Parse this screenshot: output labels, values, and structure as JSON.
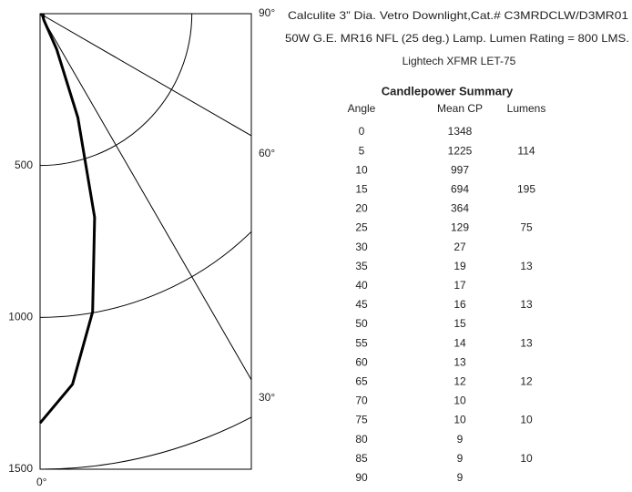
{
  "chart_data": {
    "type": "polar",
    "title_lines": [
      "Calculite 3” Dia. Vetro Downlight,Cat.# C3MRDCLW/D3MR01",
      "50W G.E. MR16 NFL (25 deg.) Lamp. Lumen Rating = 800 LMS.",
      "Lightech XFMR LET-75"
    ],
    "table_title": "Candlepower Summary",
    "columns": [
      "Angle",
      "Mean CP",
      "Lumens"
    ],
    "angles": [
      0,
      5,
      10,
      15,
      20,
      25,
      30,
      35,
      40,
      45,
      50,
      55,
      60,
      65,
      70,
      75,
      80,
      85,
      90
    ],
    "values": [
      1348,
      1225,
      997,
      694,
      364,
      129,
      27,
      19,
      17,
      16,
      15,
      14,
      13,
      12,
      10,
      10,
      9,
      9,
      9
    ],
    "lumens": [
      null,
      114,
      null,
      195,
      null,
      75,
      null,
      13,
      null,
      13,
      null,
      13,
      null,
      12,
      null,
      10,
      null,
      10,
      null
    ],
    "rlim": [
      0,
      1500
    ],
    "rticks": [
      500,
      1000,
      1500
    ],
    "angle_ticks": [
      {
        "value": 0,
        "label": "0°"
      },
      {
        "value": 30,
        "label": "30°"
      },
      {
        "value": 60,
        "label": "60°"
      },
      {
        "value": 90,
        "label": "90°"
      }
    ],
    "color": "#000000"
  }
}
